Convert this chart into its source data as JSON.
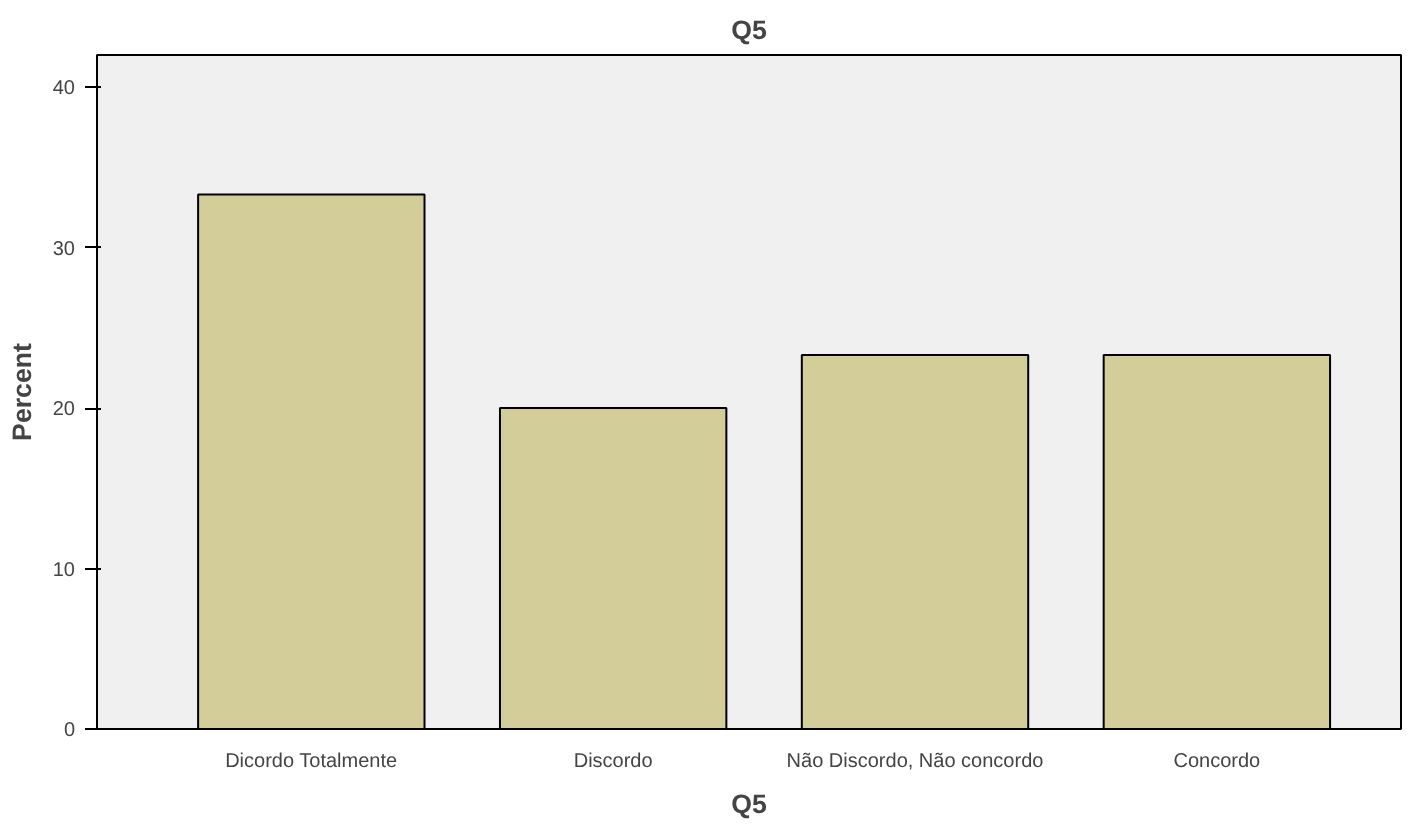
{
  "chart_data": {
    "type": "bar",
    "title": "Q5",
    "xlabel": "Q5",
    "ylabel": "Percent",
    "categories": [
      "Dicordo Totalmente",
      "Discordo",
      "Não Discordo, Não concordo",
      "Concordo"
    ],
    "values": [
      33.3,
      20.0,
      23.3,
      23.3
    ],
    "color": "#d3ce99",
    "ylim": [
      0,
      42
    ],
    "yticks": [
      0,
      10,
      20,
      30,
      40
    ],
    "grid": false
  }
}
